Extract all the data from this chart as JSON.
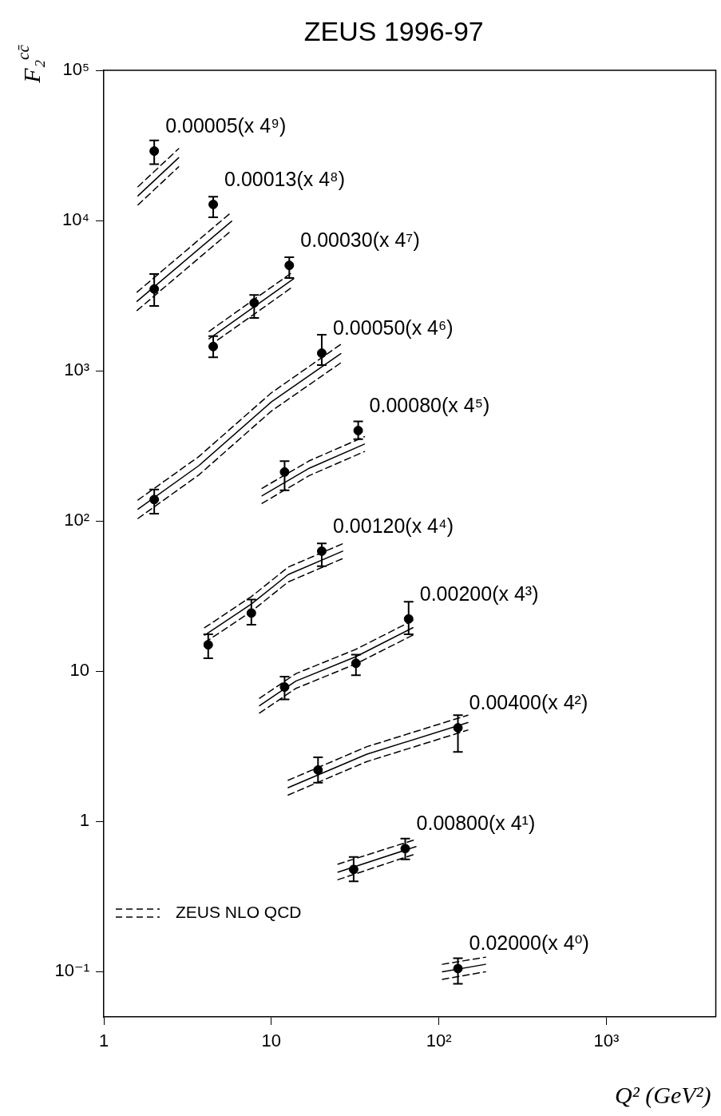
{
  "chart_data": {
    "type": "scatter",
    "title": "ZEUS 1996-97",
    "xlabel": "Q² (GeV²)",
    "ylabel": "F₂$^{cc̄}$",
    "log": "xy",
    "grid": false,
    "legend": "bottom left",
    "marker": "circle",
    "xlim": [
      1,
      4500
    ],
    "xticks": [
      1,
      10,
      {
        "value": 100,
        "label": "10²"
      },
      {
        "value": 1000,
        "label": "10³"
      }
    ],
    "ylim": [
      0.05,
      100000
    ],
    "yticks": [
      {
        "value": 0.1,
        "label": "10⁻¹"
      },
      1,
      10,
      {
        "value": 100,
        "label": "10²"
      },
      {
        "value": 1000,
        "label": "10³"
      },
      {
        "value": 10000,
        "label": "10⁴"
      },
      {
        "value": 100000,
        "label": "10⁵"
      }
    ],
    "series": [
      {
        "name": "0.00005(x 4⁹)",
        "color": "#000000",
        "x": [
          2
        ],
        "values": [
          29000
        ],
        "errors": [
          [
            23700,
            34100
          ]
        ]
      },
      {
        "type": "line",
        "marker": "none",
        "color": "#000000",
        "x": [
          1.6,
          2.8
        ],
        "values": [
          14600,
          26200
        ]
      },
      {
        "type": "line",
        "marker": "none",
        "line_style": "dashed",
        "name": "ZEUS NLO QCD",
        "color": "#000000",
        "x": [
          1.6,
          2.8
        ],
        "values": [
          16800,
          30100
        ]
      },
      {
        "type": "line",
        "marker": "none",
        "line_style": "dashed",
        "color": "#000000",
        "x": [
          1.6,
          2.8
        ],
        "values": [
          12700,
          22800
        ]
      },
      {
        "name": "0.00013(x 4⁸)",
        "color": "#000000",
        "x": [
          2,
          4.5
        ],
        "values": [
          3500,
          12800
        ],
        "errors": [
          [
            2700,
            4400
          ],
          [
            10500,
            14400
          ]
        ]
      },
      {
        "type": "line",
        "marker": "none",
        "color": "#000000",
        "x": [
          1.58,
          5.8
        ],
        "values": [
          2900,
          9900
        ]
      },
      {
        "type": "line",
        "marker": "none",
        "line_style": "dashed",
        "color": "#000000",
        "x": [
          1.58,
          5.8
        ],
        "values": [
          3340,
          11400
        ]
      },
      {
        "type": "line",
        "marker": "none",
        "line_style": "dashed",
        "color": "#000000",
        "x": [
          1.58,
          5.8
        ],
        "values": [
          2520,
          8610
        ]
      },
      {
        "name": "0.00030(x 4⁷)",
        "color": "#000000",
        "x": [
          4.5,
          7.9,
          12.8
        ],
        "values": [
          1450,
          2830,
          5030
        ],
        "errors": [
          [
            1230,
            1700
          ],
          [
            2250,
            3200
          ],
          [
            4140,
            5700
          ]
        ]
      },
      {
        "type": "line",
        "marker": "none",
        "color": "#000000",
        "x": [
          4.25,
          13.6
        ],
        "values": [
          1630,
          4100
        ]
      },
      {
        "type": "line",
        "marker": "none",
        "line_style": "dashed",
        "color": "#000000",
        "x": [
          4.25,
          13.6
        ],
        "values": [
          1830,
          4590
        ]
      },
      {
        "type": "line",
        "marker": "none",
        "line_style": "dashed",
        "color": "#000000",
        "x": [
          4.25,
          13.6
        ],
        "values": [
          1460,
          3660
        ]
      },
      {
        "name": "0.00050(x 4⁶)",
        "color": "#000000",
        "x": [
          2,
          20
        ],
        "values": [
          139,
          1310
        ],
        "errors": [
          [
            112,
            162
          ],
          [
            1090,
            1740
          ]
        ]
      },
      {
        "type": "line",
        "marker": "none",
        "color": "#000000",
        "x": [
          1.6,
          3.7,
          10,
          26
        ],
        "values": [
          120,
          234,
          620,
          1300
        ]
      },
      {
        "type": "line",
        "marker": "none",
        "line_style": "dashed",
        "color": "#000000",
        "x": [
          1.6,
          3.7,
          10,
          26
        ],
        "values": [
          138,
          269,
          713,
          1500
        ]
      },
      {
        "type": "line",
        "marker": "none",
        "line_style": "dashed",
        "color": "#000000",
        "x": [
          1.6,
          3.7,
          10,
          26
        ],
        "values": [
          104,
          203,
          539,
          1130
        ]
      },
      {
        "name": "0.00080(x 4⁵)",
        "color": "#000000",
        "x": [
          12,
          33
        ],
        "values": [
          212,
          400
        ],
        "errors": [
          [
            160,
            250
          ],
          [
            350,
            460
          ]
        ]
      },
      {
        "type": "line",
        "marker": "none",
        "color": "#000000",
        "x": [
          8.8,
          16.9,
          36
        ],
        "values": [
          147,
          225,
          325
        ]
      },
      {
        "type": "line",
        "marker": "none",
        "line_style": "dashed",
        "color": "#000000",
        "x": [
          8.8,
          16.9,
          36
        ],
        "values": [
          165,
          252,
          364
        ]
      },
      {
        "type": "line",
        "marker": "none",
        "line_style": "dashed",
        "color": "#000000",
        "x": [
          8.8,
          16.9,
          36
        ],
        "values": [
          131,
          201,
          290
        ]
      },
      {
        "name": "0.00120(x 4⁴)",
        "color": "#000000",
        "x": [
          4.2,
          7.6,
          20
        ],
        "values": [
          15,
          24.4,
          63
        ],
        "errors": [
          [
            12.2,
            17.6
          ],
          [
            20.4,
            30
          ],
          [
            50,
            71
          ]
        ]
      },
      {
        "type": "line",
        "marker": "none",
        "color": "#000000",
        "x": [
          4,
          7.6,
          12.6,
          26.7
        ],
        "values": [
          17.4,
          28,
          44,
          63
        ]
      },
      {
        "type": "line",
        "marker": "none",
        "line_style": "dashed",
        "color": "#000000",
        "x": [
          4,
          7.6,
          12.6,
          26.7
        ],
        "values": [
          19.5,
          31.4,
          49.3,
          70.6
        ]
      },
      {
        "type": "line",
        "marker": "none",
        "line_style": "dashed",
        "color": "#000000",
        "x": [
          4,
          7.6,
          12.6,
          26.7
        ],
        "values": [
          15.5,
          25,
          39.3,
          56.3
        ]
      },
      {
        "name": "0.00200(x 4³)",
        "color": "#000000",
        "x": [
          12,
          32,
          66
        ],
        "values": [
          7.85,
          11.3,
          22.3
        ],
        "errors": [
          [
            6.5,
            9.2
          ],
          [
            9.4,
            12.9
          ],
          [
            17.6,
            29
          ]
        ]
      },
      {
        "type": "line",
        "marker": "none",
        "color": "#000000",
        "x": [
          8.5,
          14,
          32,
          70
        ],
        "values": [
          5.9,
          8.6,
          12.5,
          19.5
        ]
      },
      {
        "type": "line",
        "marker": "none",
        "line_style": "dashed",
        "color": "#000000",
        "x": [
          8.5,
          14,
          32,
          70
        ],
        "values": [
          6.61,
          9.63,
          14,
          21.8
        ]
      },
      {
        "type": "line",
        "marker": "none",
        "line_style": "dashed",
        "color": "#000000",
        "x": [
          8.5,
          14,
          32,
          70
        ],
        "values": [
          5.27,
          7.68,
          11.2,
          17.4
        ]
      },
      {
        "name": "0.00400(x 4²)",
        "color": "#000000",
        "x": [
          19,
          130
        ],
        "values": [
          2.2,
          4.2
        ],
        "errors": [
          [
            1.81,
            2.67
          ],
          [
            2.9,
            5.1
          ]
        ]
      },
      {
        "type": "line",
        "marker": "none",
        "color": "#000000",
        "x": [
          12.6,
          37,
          149
        ],
        "values": [
          1.68,
          2.8,
          4.55
        ]
      },
      {
        "type": "line",
        "marker": "none",
        "line_style": "dashed",
        "color": "#000000",
        "x": [
          12.6,
          37,
          149
        ],
        "values": [
          1.88,
          3.14,
          5.1
        ]
      },
      {
        "type": "line",
        "marker": "none",
        "line_style": "dashed",
        "color": "#000000",
        "x": [
          12.6,
          37,
          149
        ],
        "values": [
          1.5,
          2.5,
          4.06
        ]
      },
      {
        "name": "0.00800(x 4¹)",
        "color": "#000000",
        "x": [
          31,
          63
        ],
        "values": [
          0.48,
          0.66
        ],
        "errors": [
          [
            0.4,
            0.58
          ],
          [
            0.56,
            0.77
          ]
        ]
      },
      {
        "type": "line",
        "marker": "none",
        "color": "#000000",
        "x": [
          25,
          73
        ],
        "values": [
          0.46,
          0.68
        ]
      },
      {
        "type": "line",
        "marker": "none",
        "line_style": "dashed",
        "color": "#000000",
        "x": [
          25,
          73
        ],
        "values": [
          0.52,
          0.76
        ]
      },
      {
        "type": "line",
        "marker": "none",
        "line_style": "dashed",
        "color": "#000000",
        "x": [
          25,
          73
        ],
        "values": [
          0.41,
          0.61
        ]
      },
      {
        "name": "0.02000(x 4⁰)",
        "color": "#000000",
        "x": [
          130
        ],
        "values": [
          0.105
        ],
        "errors": [
          [
            0.083,
            0.123
          ]
        ]
      },
      {
        "type": "line",
        "marker": "none",
        "color": "#000000",
        "x": [
          105,
          190
        ],
        "values": [
          0.1,
          0.112
        ]
      },
      {
        "type": "line",
        "marker": "none",
        "line_style": "dashed",
        "color": "#000000",
        "x": [
          105,
          190
        ],
        "values": [
          0.112,
          0.125
        ]
      },
      {
        "type": "line",
        "marker": "none",
        "line_style": "dashed",
        "color": "#000000",
        "x": [
          105,
          190
        ],
        "values": [
          0.089,
          0.1
        ]
      }
    ]
  }
}
